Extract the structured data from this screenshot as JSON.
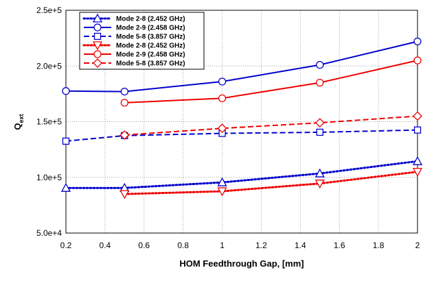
{
  "chart_data": {
    "type": "line",
    "xlabel": "HOM Feedthrough Gap, [mm]",
    "ylabel_main": "Q",
    "ylabel_sub": "ext",
    "xlim": [
      0.2,
      2.0
    ],
    "ylim": [
      50000,
      250000
    ],
    "x_ticks": [
      0.2,
      0.4,
      0.6,
      0.8,
      1.0,
      1.2,
      1.4,
      1.6,
      1.8,
      2.0
    ],
    "x_tick_labels": [
      "0.2",
      "0.4",
      "0.6",
      "0.8",
      "1",
      "1.2",
      "1.4",
      "1.6",
      "1.8",
      "2"
    ],
    "y_ticks": [
      50000,
      100000,
      150000,
      200000,
      250000
    ],
    "y_tick_labels": [
      "5.0e+4",
      "1.0e+5",
      "1.5e+5",
      "2.0e+5",
      "2.5e+5"
    ],
    "grid": true,
    "legend_position": "top-left",
    "series": [
      {
        "name": "Mode 2-8 (2.452 GHz)",
        "color": "#0000cc",
        "dash": "dotted",
        "marker": "triangle-up",
        "x": [
          0.2,
          0.5,
          1.0,
          1.5,
          2.0
        ],
        "y": [
          90500,
          90500,
          95500,
          103500,
          114500
        ]
      },
      {
        "name": "Mode 2-9 (2.458 GHz)",
        "color": "#0000cc",
        "dash": "solid",
        "marker": "circle",
        "x": [
          0.2,
          0.5,
          1.0,
          1.5,
          2.0
        ],
        "y": [
          177500,
          177000,
          186000,
          201000,
          222000
        ]
      },
      {
        "name": "Mode 5-8 (3.857 GHz)",
        "color": "#0000cc",
        "dash": "dashed",
        "marker": "square",
        "x": [
          0.2,
          0.5,
          1.0,
          1.5,
          2.0
        ],
        "y": [
          132500,
          137500,
          139500,
          140500,
          142500
        ]
      },
      {
        "name": "Mode 2-8 (2.452 GHz)",
        "color": "#ee0000",
        "dash": "dotted",
        "marker": "triangle-down",
        "x": [
          0.5,
          1.0,
          1.5,
          2.0
        ],
        "y": [
          85000,
          87500,
          94500,
          105000
        ]
      },
      {
        "name": "Mode 2-9 (2.458 GHz)",
        "color": "#ee0000",
        "dash": "solid",
        "marker": "circle",
        "x": [
          0.5,
          1.0,
          1.5,
          2.0
        ],
        "y": [
          167000,
          171000,
          185000,
          205000
        ]
      },
      {
        "name": "Mode 5-8 (3.857 GHz)",
        "color": "#ee0000",
        "dash": "dashed",
        "marker": "diamond",
        "x": [
          0.5,
          1.0,
          1.5,
          2.0
        ],
        "y": [
          138000,
          144000,
          149000,
          155000
        ]
      }
    ]
  }
}
